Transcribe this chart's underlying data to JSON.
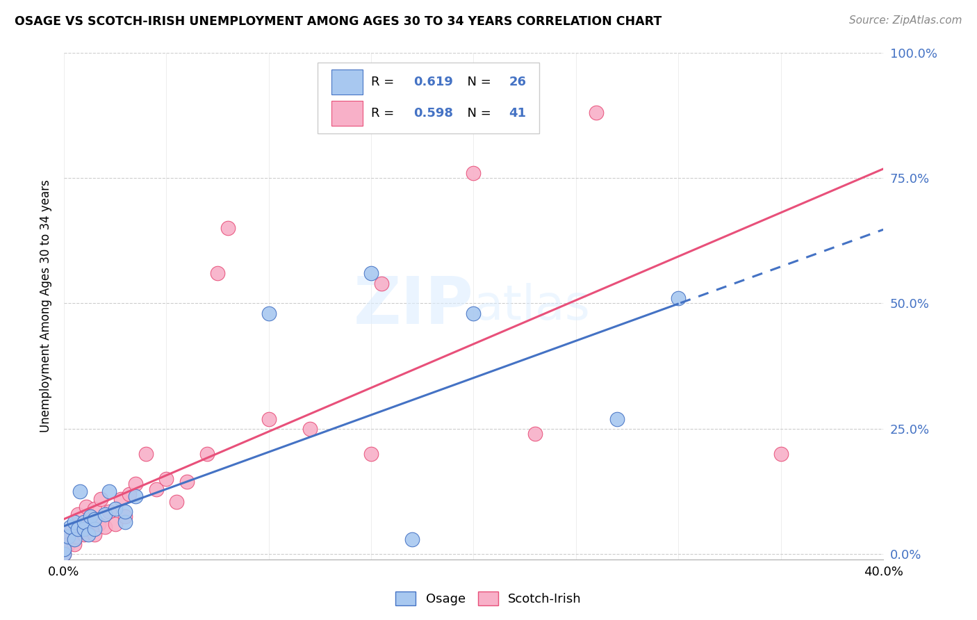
{
  "title": "OSAGE VS SCOTCH-IRISH UNEMPLOYMENT AMONG AGES 30 TO 34 YEARS CORRELATION CHART",
  "source": "Source: ZipAtlas.com",
  "ylabel": "Unemployment Among Ages 30 to 34 years",
  "xlim": [
    0.0,
    0.4
  ],
  "ylim": [
    -0.01,
    1.0
  ],
  "osage_R": 0.619,
  "osage_N": 26,
  "scotch_irish_R": 0.598,
  "scotch_irish_N": 41,
  "osage_color": "#a8c8f0",
  "scotch_irish_color": "#f8b0c8",
  "osage_line_color": "#4472c4",
  "scotch_irish_line_color": "#e8507a",
  "watermark": "ZIPatlas",
  "osage_x": [
    0.0,
    0.0,
    0.002,
    0.003,
    0.005,
    0.005,
    0.007,
    0.008,
    0.01,
    0.01,
    0.012,
    0.013,
    0.015,
    0.015,
    0.02,
    0.022,
    0.025,
    0.03,
    0.03,
    0.035,
    0.1,
    0.15,
    0.17,
    0.2,
    0.27,
    0.3
  ],
  "osage_y": [
    0.0,
    0.01,
    0.035,
    0.055,
    0.03,
    0.065,
    0.05,
    0.125,
    0.05,
    0.065,
    0.04,
    0.075,
    0.05,
    0.07,
    0.08,
    0.125,
    0.09,
    0.065,
    0.085,
    0.115,
    0.48,
    0.56,
    0.03,
    0.48,
    0.27,
    0.51
  ],
  "scotch_x": [
    0.0,
    0.0,
    0.0,
    0.0,
    0.002,
    0.004,
    0.005,
    0.006,
    0.007,
    0.01,
    0.01,
    0.011,
    0.012,
    0.013,
    0.015,
    0.015,
    0.017,
    0.018,
    0.02,
    0.022,
    0.025,
    0.028,
    0.03,
    0.032,
    0.035,
    0.04,
    0.045,
    0.05,
    0.055,
    0.06,
    0.07,
    0.075,
    0.08,
    0.1,
    0.12,
    0.15,
    0.155,
    0.2,
    0.23,
    0.26,
    0.35
  ],
  "scotch_y": [
    0.0,
    0.01,
    0.025,
    0.045,
    0.02,
    0.05,
    0.02,
    0.035,
    0.08,
    0.04,
    0.06,
    0.095,
    0.05,
    0.065,
    0.04,
    0.09,
    0.06,
    0.11,
    0.055,
    0.085,
    0.06,
    0.11,
    0.075,
    0.12,
    0.14,
    0.2,
    0.13,
    0.15,
    0.105,
    0.145,
    0.2,
    0.56,
    0.65,
    0.27,
    0.25,
    0.2,
    0.54,
    0.76,
    0.24,
    0.88,
    0.2
  ]
}
